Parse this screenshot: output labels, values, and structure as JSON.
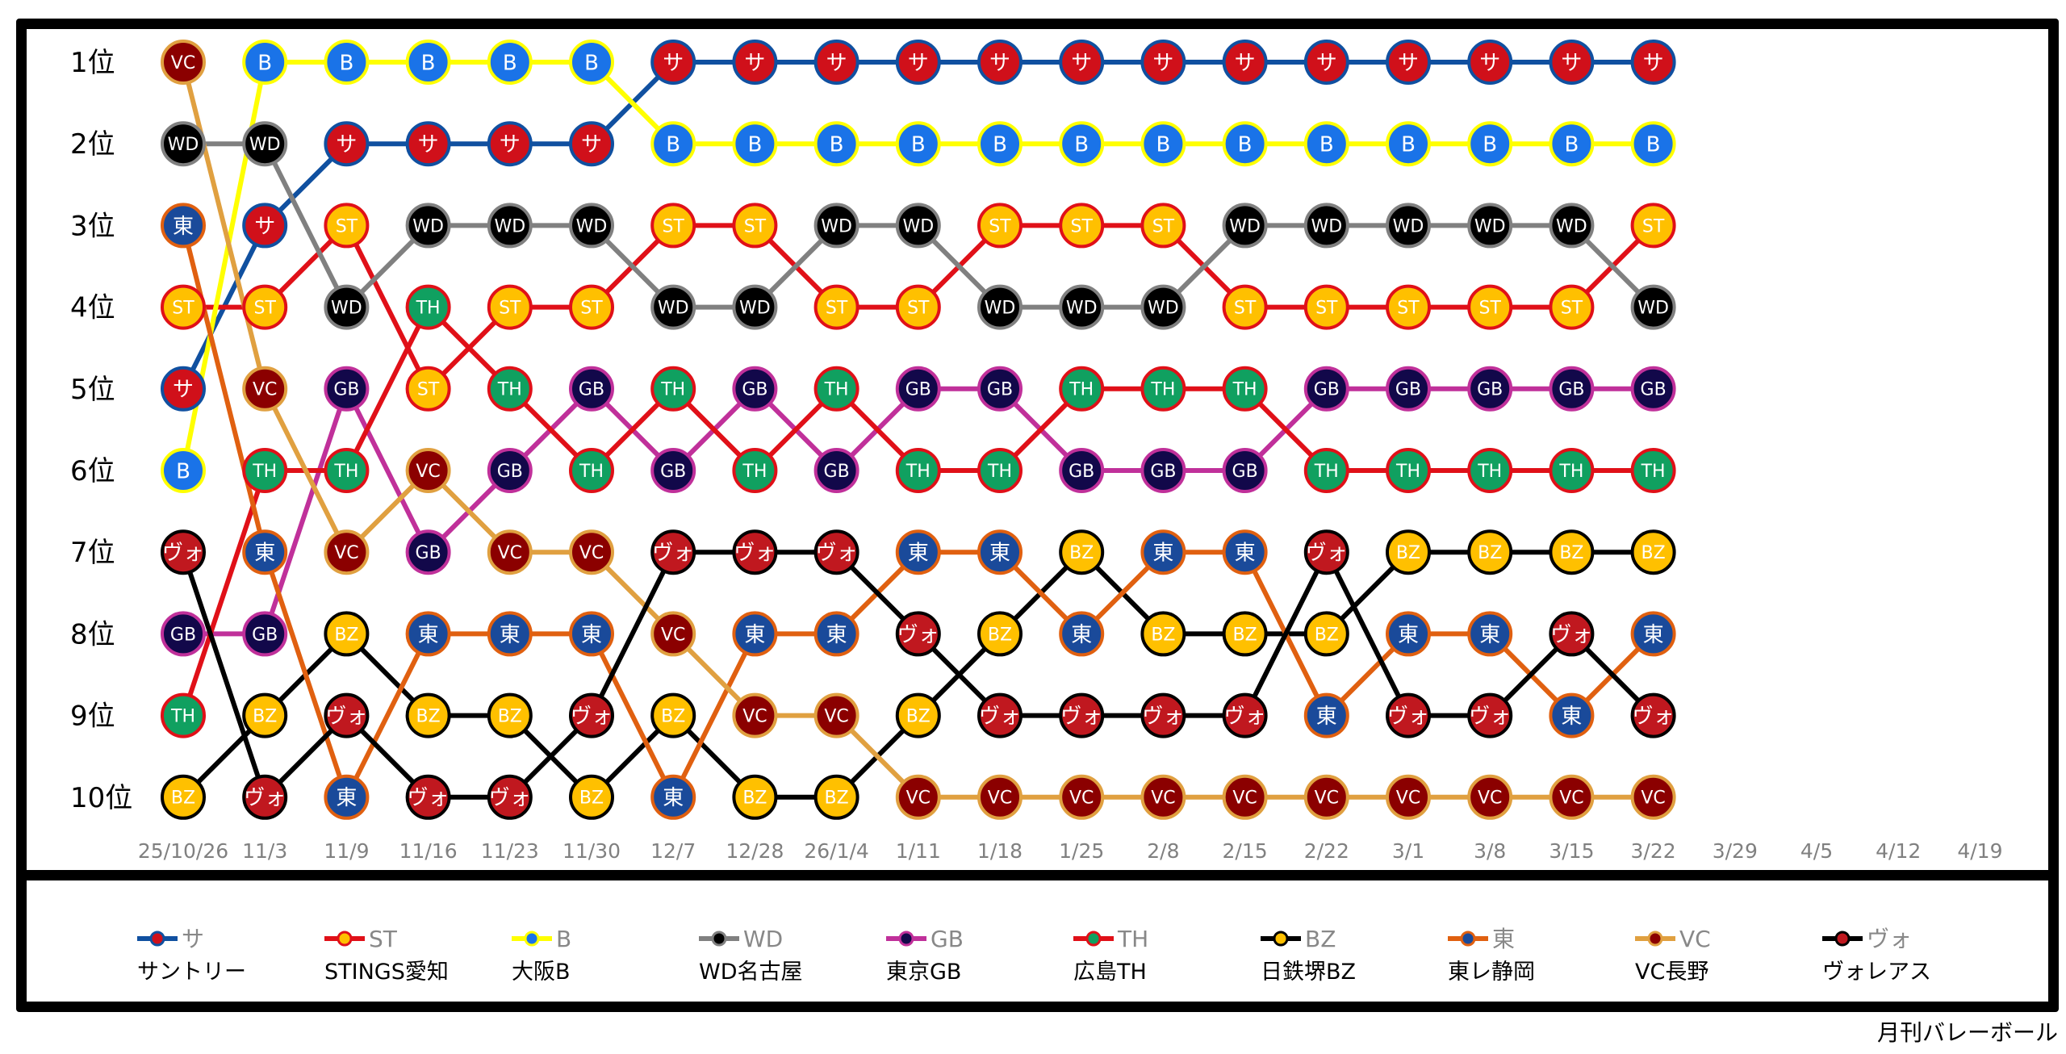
{
  "chart_data": {
    "type": "line",
    "subtype": "bump",
    "y_labels": [
      "1位",
      "2位",
      "3位",
      "4位",
      "5位",
      "6位",
      "7位",
      "8位",
      "9位",
      "10位"
    ],
    "x": [
      "25/10/26",
      "11/3",
      "11/9",
      "11/16",
      "11/23",
      "11/30",
      "12/7",
      "12/28",
      "26/1/4",
      "1/11",
      "1/18",
      "1/25",
      "2/8",
      "2/15",
      "2/22",
      "3/1",
      "3/8",
      "3/15",
      "3/22",
      "3/29",
      "4/5",
      "4/12",
      "4/19"
    ],
    "teams": [
      {
        "key": "サ",
        "name": "サントリー",
        "fill": "#d0101a",
        "ring": "#1050a0",
        "line": "#1050a0"
      },
      {
        "key": "ST",
        "name": "STINGS愛知",
        "fill": "#ffc000",
        "ring": "#e01018",
        "line": "#e01018"
      },
      {
        "key": "B",
        "name": "大阪B",
        "fill": "#1a73e8",
        "ring": "#ffff00",
        "line": "#ffff00"
      },
      {
        "key": "WD",
        "name": "WD名古屋",
        "fill": "#000000",
        "ring": "#808080",
        "line": "#808080"
      },
      {
        "key": "GB",
        "name": "東京GB",
        "fill": "#12084a",
        "ring": "#c0309a",
        "line": "#c0309a"
      },
      {
        "key": "TH",
        "name": "広島TH",
        "fill": "#10a060",
        "ring": "#e01018",
        "line": "#e01018"
      },
      {
        "key": "BZ",
        "name": "日鉄堺BZ",
        "fill": "#ffc000",
        "ring": "#000000",
        "line": "#000000"
      },
      {
        "key": "東",
        "name": "東レ静岡",
        "fill": "#1a4a9a",
        "ring": "#e06010",
        "line": "#e06010"
      },
      {
        "key": "VC",
        "name": "VC長野",
        "fill": "#8b0000",
        "ring": "#e0a040",
        "line": "#e0a040"
      },
      {
        "key": "ヴォ",
        "name": "ヴォレアス",
        "fill": "#c0181f",
        "ring": "#000000",
        "line": "#000000"
      }
    ],
    "rankings": [
      [
        "VC",
        "WD",
        "東",
        "ST",
        "サ",
        "B",
        "ヴォ",
        "GB",
        "TH",
        "BZ"
      ],
      [
        "B",
        "WD",
        "サ",
        "ST",
        "VC",
        "TH",
        "東",
        "GB",
        "BZ",
        "ヴォ"
      ],
      [
        "B",
        "サ",
        "ST",
        "WD",
        "GB",
        "TH",
        "VC",
        "BZ",
        "ヴォ",
        "東"
      ],
      [
        "B",
        "サ",
        "WD",
        "TH",
        "ST",
        "VC",
        "GB",
        "東",
        "BZ",
        "ヴォ"
      ],
      [
        "B",
        "サ",
        "WD",
        "ST",
        "TH",
        "GB",
        "VC",
        "東",
        "BZ",
        "ヴォ"
      ],
      [
        "B",
        "サ",
        "WD",
        "ST",
        "GB",
        "TH",
        "VC",
        "東",
        "ヴォ",
        "BZ"
      ],
      [
        "サ",
        "B",
        "ST",
        "WD",
        "TH",
        "GB",
        "ヴォ",
        "VC",
        "BZ",
        "東"
      ],
      [
        "サ",
        "B",
        "ST",
        "WD",
        "GB",
        "TH",
        "ヴォ",
        "東",
        "VC",
        "BZ"
      ],
      [
        "サ",
        "B",
        "WD",
        "ST",
        "TH",
        "GB",
        "ヴォ",
        "東",
        "VC",
        "BZ"
      ],
      [
        "サ",
        "B",
        "WD",
        "ST",
        "GB",
        "TH",
        "東",
        "ヴォ",
        "BZ",
        "VC"
      ],
      [
        "サ",
        "B",
        "ST",
        "WD",
        "GB",
        "TH",
        "東",
        "BZ",
        "ヴォ",
        "VC"
      ],
      [
        "サ",
        "B",
        "ST",
        "WD",
        "TH",
        "GB",
        "BZ",
        "東",
        "ヴォ",
        "VC"
      ],
      [
        "サ",
        "B",
        "ST",
        "WD",
        "TH",
        "GB",
        "東",
        "BZ",
        "ヴォ",
        "VC"
      ],
      [
        "サ",
        "B",
        "WD",
        "ST",
        "TH",
        "GB",
        "東",
        "BZ",
        "ヴォ",
        "VC"
      ],
      [
        "サ",
        "B",
        "WD",
        "ST",
        "GB",
        "TH",
        "ヴォ",
        "BZ",
        "東",
        "VC"
      ],
      [
        "サ",
        "B",
        "WD",
        "ST",
        "GB",
        "TH",
        "BZ",
        "東",
        "ヴォ",
        "VC"
      ],
      [
        "サ",
        "B",
        "WD",
        "ST",
        "GB",
        "TH",
        "BZ",
        "東",
        "ヴォ",
        "VC"
      ],
      [
        "サ",
        "B",
        "WD",
        "ST",
        "GB",
        "TH",
        "BZ",
        "ヴォ",
        "東",
        "VC"
      ],
      [
        "サ",
        "B",
        "ST",
        "WD",
        "GB",
        "TH",
        "BZ",
        "東",
        "ヴォ",
        "VC"
      ]
    ]
  },
  "source": "月刊バレーボール"
}
